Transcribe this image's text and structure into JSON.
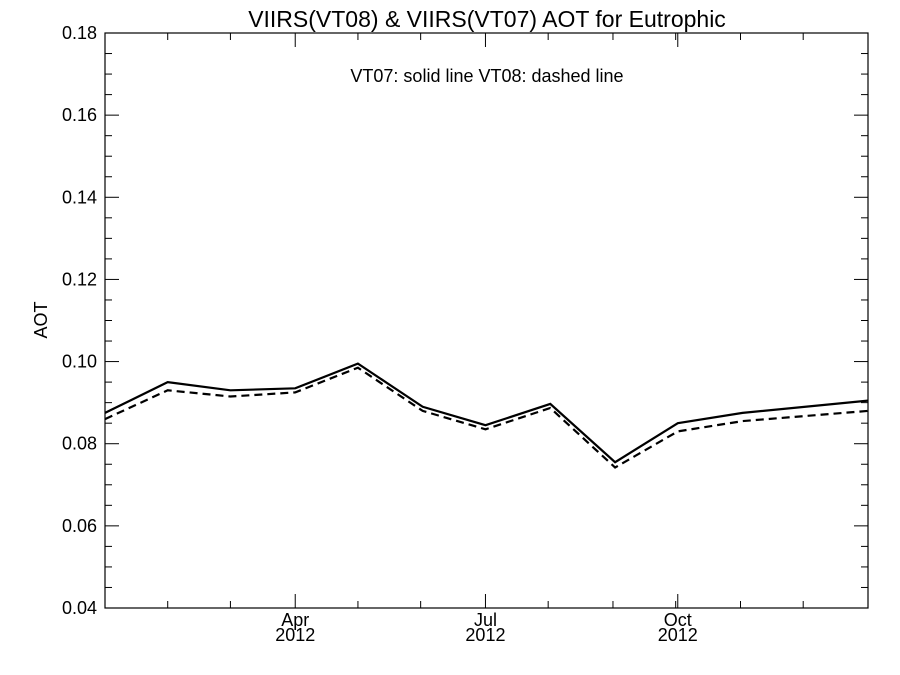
{
  "chart_data": {
    "type": "line",
    "title": "VIIRS(VT08) & VIIRS(VT07)  AOT for Eutrophic",
    "annotation": "VT07: solid line   VT08: dashed line",
    "xlabel": "",
    "ylabel": "AOT",
    "xlim": [
      "2012-01-01",
      "2012-12-31"
    ],
    "ylim": [
      0.04,
      0.18
    ],
    "yticks": [
      "0.04",
      "0.06",
      "0.08",
      "0.10",
      "0.12",
      "0.14",
      "0.16",
      "0.18"
    ],
    "ytick_values": [
      0.04,
      0.06,
      0.08,
      0.1,
      0.12,
      0.14,
      0.16,
      0.18
    ],
    "xticks": [
      {
        "date": "2012-04-01",
        "month": "Apr",
        "year": "2012"
      },
      {
        "date": "2012-07-01",
        "month": "Jul",
        "year": "2012"
      },
      {
        "date": "2012-10-01",
        "month": "Oct",
        "year": "2012"
      }
    ],
    "x_minor_ticks": [
      "2012-01-31",
      "2012-03-01",
      "2012-05-01",
      "2012-05-31",
      "2012-07-31",
      "2012-08-31",
      "2012-09-30",
      "2012-10-31",
      "2012-11-30"
    ],
    "grid": false,
    "series": [
      {
        "name": "VT07",
        "style": "solid",
        "color": "#000000",
        "x": [
          "2012-01-01",
          "2012-01-31",
          "2012-03-01",
          "2012-04-01",
          "2012-05-01",
          "2012-06-01",
          "2012-07-01",
          "2012-08-01",
          "2012-09-01",
          "2012-10-01",
          "2012-11-01",
          "2012-12-31"
        ],
        "values": [
          0.0875,
          0.095,
          0.093,
          0.0935,
          0.0995,
          0.089,
          0.0845,
          0.0897,
          0.0755,
          0.085,
          0.0875,
          0.0905
        ]
      },
      {
        "name": "VT08",
        "style": "dashed",
        "color": "#000000",
        "x": [
          "2012-01-01",
          "2012-01-31",
          "2012-03-01",
          "2012-04-01",
          "2012-05-01",
          "2012-06-01",
          "2012-07-01",
          "2012-08-01",
          "2012-09-01",
          "2012-10-01",
          "2012-11-01",
          "2012-12-31"
        ],
        "values": [
          0.086,
          0.093,
          0.0915,
          0.0925,
          0.0985,
          0.088,
          0.0835,
          0.0887,
          0.0742,
          0.083,
          0.0855,
          0.088
        ]
      }
    ]
  }
}
